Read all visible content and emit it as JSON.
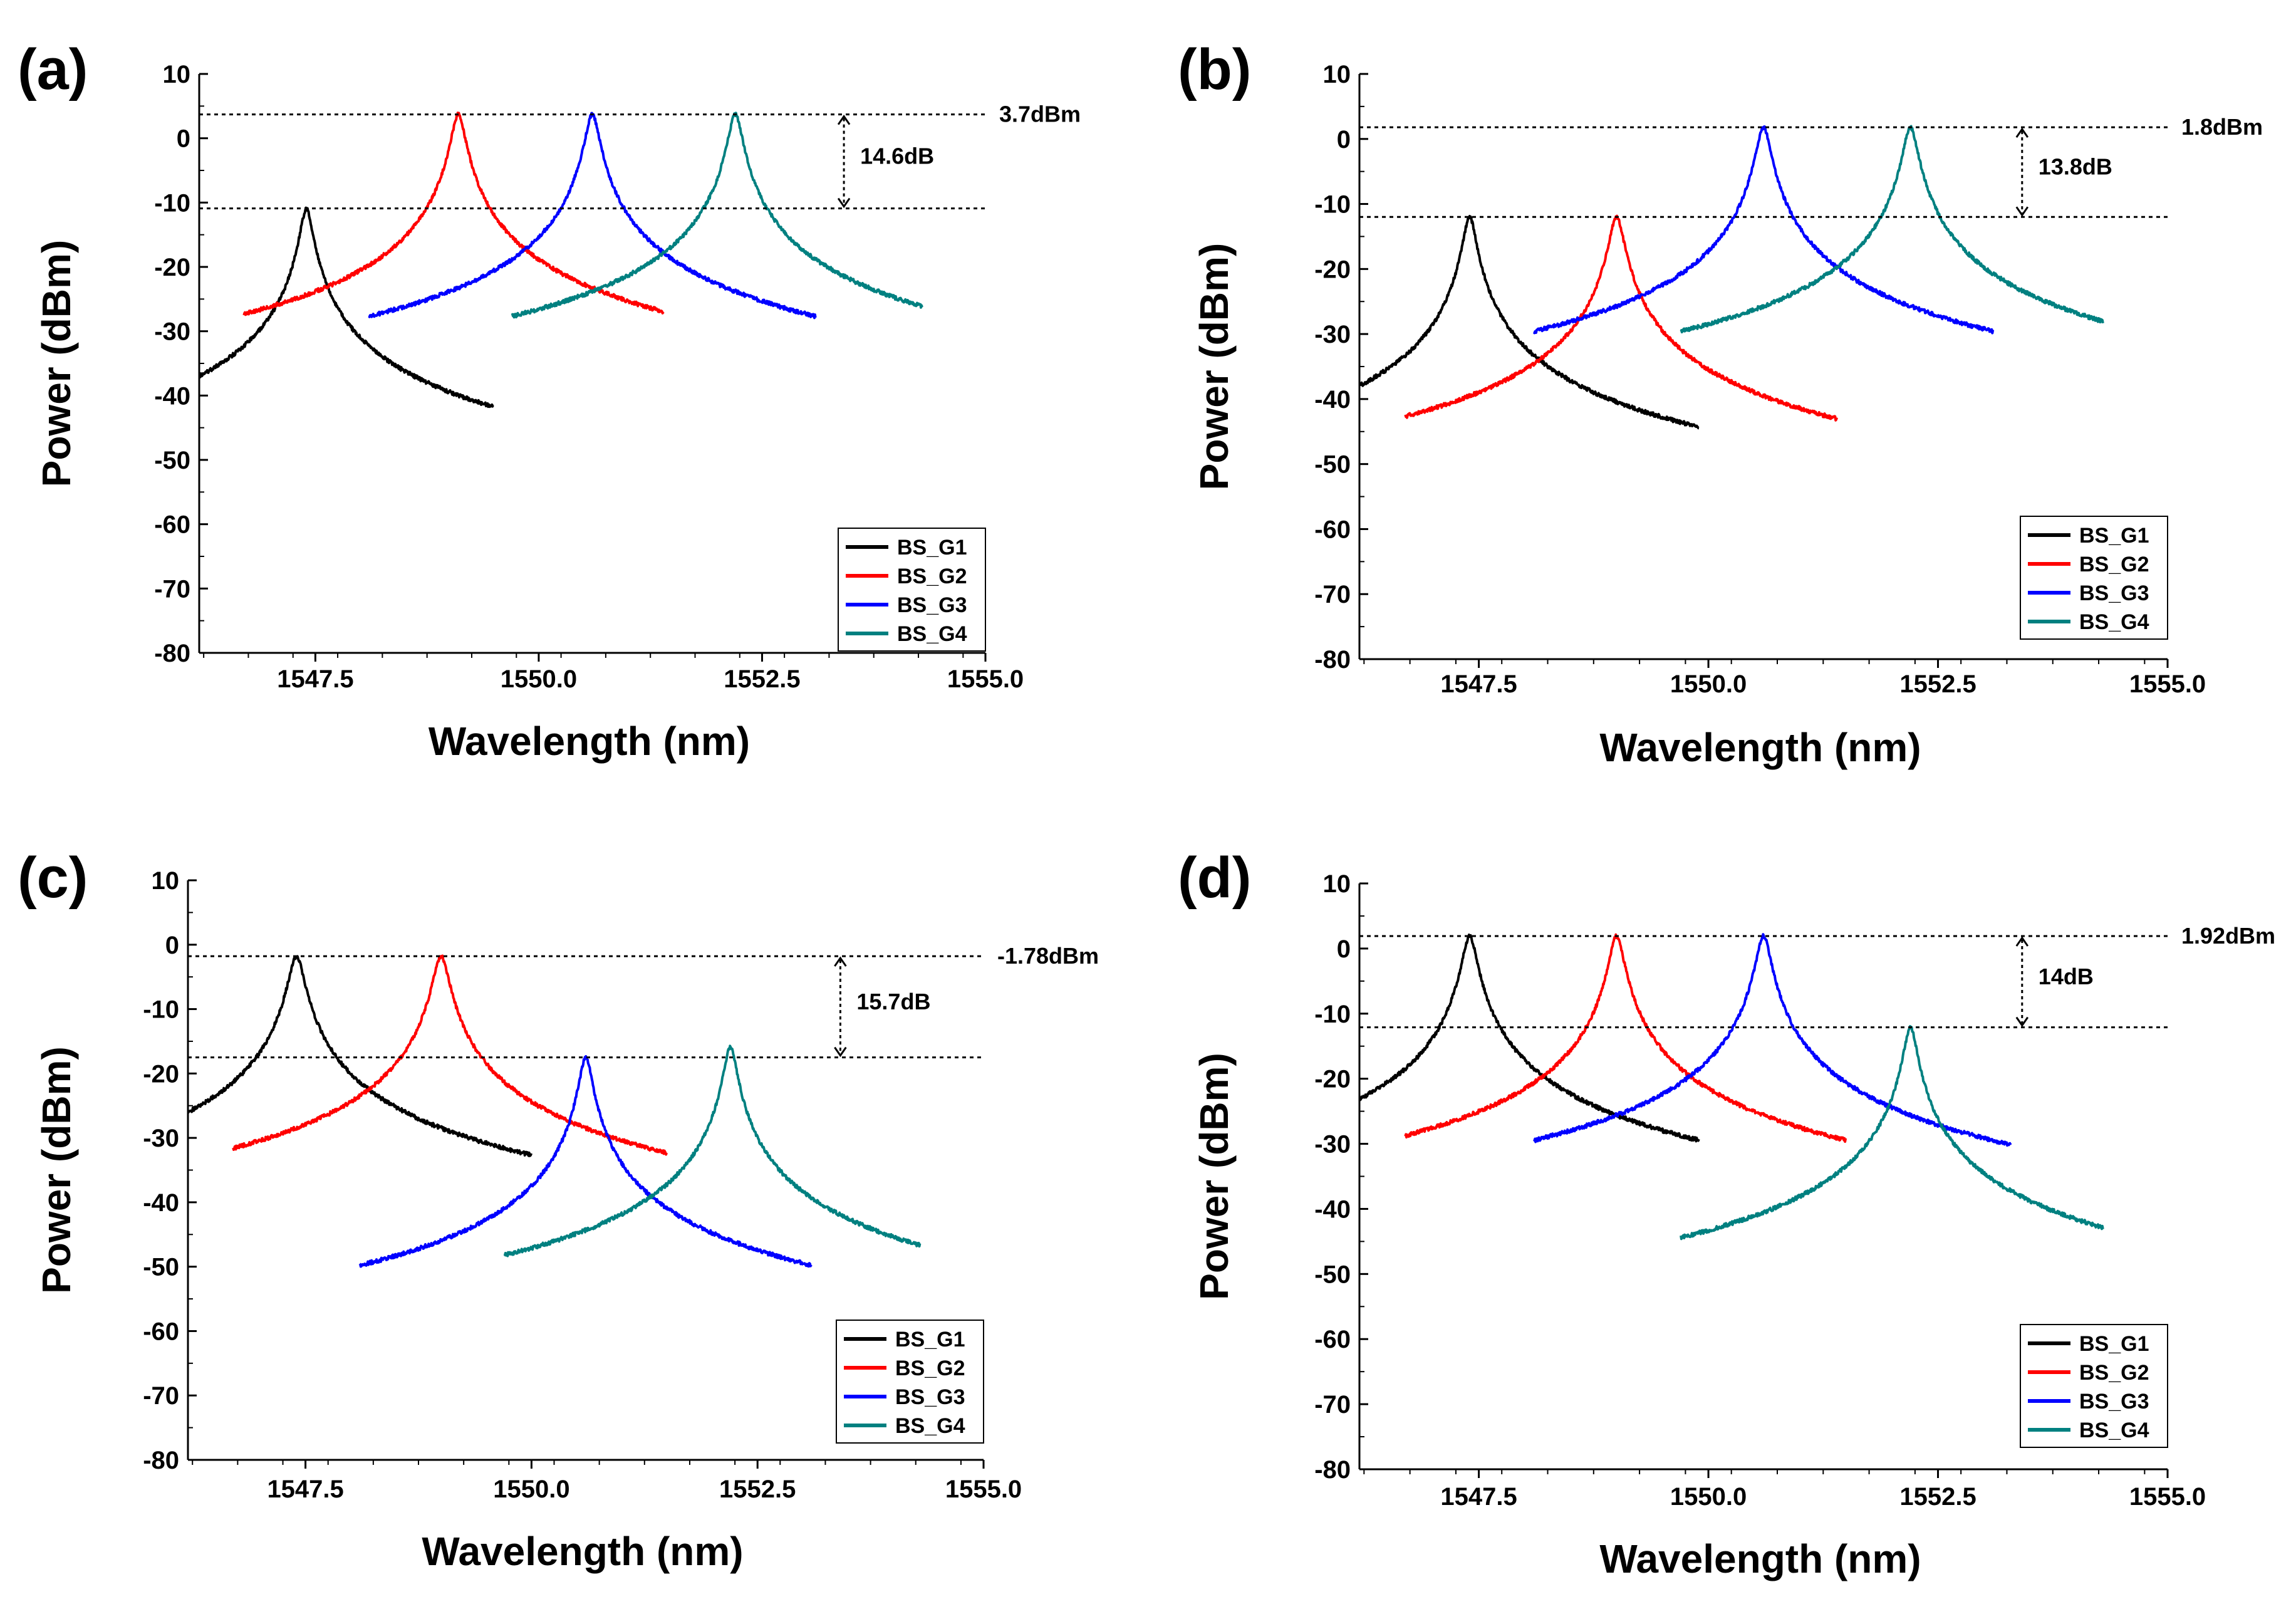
{
  "figure": {
    "description_note": "Four-panel optical spectrum figure"
  },
  "chart_data": [
    {
      "type": "line",
      "panel_label": "(a)",
      "xlabel": "Wavelength (nm)",
      "ylabel": "Power (dBm)",
      "xlim": [
        1546.2,
        1555.0
      ],
      "ylim": [
        -80,
        10
      ],
      "xticks": [
        "1547.5",
        "1550.0",
        "1552.5",
        "1555.0"
      ],
      "xtick_values": [
        1547.5,
        1550.0,
        1552.5,
        1555.0
      ],
      "yticks": [
        "10",
        "0",
        "-10",
        "-20",
        "-30",
        "-40",
        "-50",
        "-60",
        "-70",
        "-80"
      ],
      "ytick_values": [
        10,
        0,
        -10,
        -20,
        -30,
        -40,
        -50,
        -60,
        -70,
        -80
      ],
      "legend": "bottom-right",
      "series": [
        {
          "name": "BS_G1",
          "color": "#000000",
          "center": 1547.4,
          "peak": -11.0,
          "floor": -70,
          "noise": 7,
          "x_start": 1546.2,
          "x_end": 1549.5,
          "width": 0.09
        },
        {
          "name": "BS_G2",
          "color": "#ff0000",
          "center": 1549.1,
          "peak": 3.7,
          "floor": -61,
          "noise": 4,
          "x_start": 1546.7,
          "x_end": 1551.4,
          "width": 0.1
        },
        {
          "name": "BS_G3",
          "color": "#0000ff",
          "center": 1550.6,
          "peak": 3.7,
          "floor": -60,
          "noise": 1.5,
          "x_start": 1548.1,
          "x_end": 1553.1,
          "width": 0.1
        },
        {
          "name": "BS_G4",
          "color": "#008080",
          "center": 1552.2,
          "peak": 3.7,
          "floor": -60,
          "noise": 2.5,
          "x_start": 1549.7,
          "x_end": 1554.3,
          "width": 0.1
        }
      ],
      "reference_lines": [
        3.7,
        -10.9
      ],
      "annotations": {
        "upper_label": "3.7dBm",
        "delta_label": "14.6dB"
      }
    },
    {
      "type": "line",
      "panel_label": "(b)",
      "xlabel": "Wavelength (nm)",
      "ylabel": "Power (dBm)",
      "xlim": [
        1546.2,
        1555.0
      ],
      "ylim": [
        -80,
        10
      ],
      "xticks": [
        "1547.5",
        "1550.0",
        "1552.5",
        "1555.0"
      ],
      "xtick_values": [
        1547.5,
        1550.0,
        1552.5,
        1555.0
      ],
      "yticks": [
        "10",
        "0",
        "-10",
        "-20",
        "-30",
        "-40",
        "-50",
        "-60",
        "-70",
        "-80"
      ],
      "ytick_values": [
        10,
        0,
        -10,
        -20,
        -30,
        -40,
        -50,
        -60,
        -70,
        -80
      ],
      "legend": "bottom-right",
      "series": [
        {
          "name": "BS_G1",
          "color": "#000000",
          "center": 1547.4,
          "peak": -12.0,
          "floor": -70,
          "noise": 6,
          "x_start": 1546.2,
          "x_end": 1549.9,
          "width": 0.09
        },
        {
          "name": "BS_G2",
          "color": "#ff0000",
          "center": 1549.0,
          "peak": -12.0,
          "floor": -60,
          "noise": 4,
          "x_start": 1546.7,
          "x_end": 1551.4,
          "width": 0.1
        },
        {
          "name": "BS_G3",
          "color": "#0000ff",
          "center": 1550.6,
          "peak": 1.8,
          "floor": -62,
          "noise": 3,
          "x_start": 1548.1,
          "x_end": 1553.1,
          "width": 0.1
        },
        {
          "name": "BS_G4",
          "color": "#008080",
          "center": 1552.2,
          "peak": 1.8,
          "floor": -61,
          "noise": 2.5,
          "x_start": 1549.7,
          "x_end": 1554.3,
          "width": 0.1
        }
      ],
      "reference_lines": [
        1.8,
        -12.0
      ],
      "annotations": {
        "upper_label": "1.8dBm",
        "delta_label": "13.8dB"
      }
    },
    {
      "type": "line",
      "panel_label": "(c)",
      "xlabel": "Wavelength (nm)",
      "ylabel": "Power (dBm)",
      "xlim": [
        1546.2,
        1555.0
      ],
      "ylim": [
        -80,
        10
      ],
      "xticks": [
        "1547.5",
        "1550.0",
        "1552.5",
        "1555.0"
      ],
      "xtick_values": [
        1547.5,
        1550.0,
        1552.5,
        1555.0
      ],
      "yticks": [
        "10",
        "0",
        "-10",
        "-20",
        "-30",
        "-40",
        "-50",
        "-60",
        "-70",
        "-80"
      ],
      "ytick_values": [
        10,
        0,
        -10,
        -20,
        -30,
        -40,
        -50,
        -60,
        -70,
        -80
      ],
      "legend": "bottom-right",
      "series": [
        {
          "name": "BS_G1",
          "color": "#000000",
          "center": 1547.4,
          "peak": -1.78,
          "floor": -64,
          "noise": 1.5,
          "x_start": 1546.2,
          "x_end": 1550.0,
          "width": 0.11
        },
        {
          "name": "BS_G2",
          "color": "#ff0000",
          "center": 1549.0,
          "peak": -1.78,
          "floor": -65,
          "noise": 2,
          "x_start": 1546.7,
          "x_end": 1551.5,
          "width": 0.11
        },
        {
          "name": "BS_G3",
          "color": "#0000ff",
          "center": 1550.6,
          "peak": -17.5,
          "floor": -73,
          "noise": 6,
          "x_start": 1548.1,
          "x_end": 1553.1,
          "width": 0.09
        },
        {
          "name": "BS_G4",
          "color": "#008080",
          "center": 1552.2,
          "peak": -15.9,
          "floor": -78,
          "noise": 1,
          "x_start": 1549.7,
          "x_end": 1554.3,
          "width": 0.09
        }
      ],
      "reference_lines": [
        -1.78,
        -17.5
      ],
      "annotations": {
        "upper_label": "-1.78dBm",
        "delta_label": "15.7dB"
      }
    },
    {
      "type": "line",
      "panel_label": "(d)",
      "xlabel": "Wavelength (nm)",
      "ylabel": "Power (dBm)",
      "xlim": [
        1546.2,
        1555.0
      ],
      "ylim": [
        -80,
        10
      ],
      "xticks": [
        "1547.5",
        "1550.0",
        "1552.5",
        "1555.0"
      ],
      "xtick_values": [
        1547.5,
        1550.0,
        1552.5,
        1555.0
      ],
      "yticks": [
        "10",
        "0",
        "-10",
        "-20",
        "-30",
        "-40",
        "-50",
        "-60",
        "-70",
        "-80"
      ],
      "ytick_values": [
        10,
        0,
        -10,
        -20,
        -30,
        -40,
        -50,
        -60,
        -70,
        -80
      ],
      "legend": "bottom-right",
      "series": [
        {
          "name": "BS_G1",
          "color": "#000000",
          "center": 1547.4,
          "peak": 1.92,
          "floor": -60,
          "noise": 1.5,
          "x_start": 1546.2,
          "x_end": 1549.9,
          "width": 0.1
        },
        {
          "name": "BS_G2",
          "color": "#ff0000",
          "center": 1549.0,
          "peak": 1.92,
          "floor": -61,
          "noise": 2,
          "x_start": 1546.7,
          "x_end": 1551.5,
          "width": 0.1
        },
        {
          "name": "BS_G3",
          "color": "#0000ff",
          "center": 1550.6,
          "peak": 1.92,
          "floor": -61,
          "noise": 1.5,
          "x_start": 1548.1,
          "x_end": 1553.3,
          "width": 0.1
        },
        {
          "name": "BS_G4",
          "color": "#008080",
          "center": 1552.2,
          "peak": -12.1,
          "floor": -70,
          "noise": 6,
          "x_start": 1549.7,
          "x_end": 1554.3,
          "width": 0.09
        }
      ],
      "reference_lines": [
        1.92,
        -12.1
      ],
      "annotations": {
        "upper_label": "1.92dBm",
        "delta_label": "14dB"
      }
    }
  ]
}
